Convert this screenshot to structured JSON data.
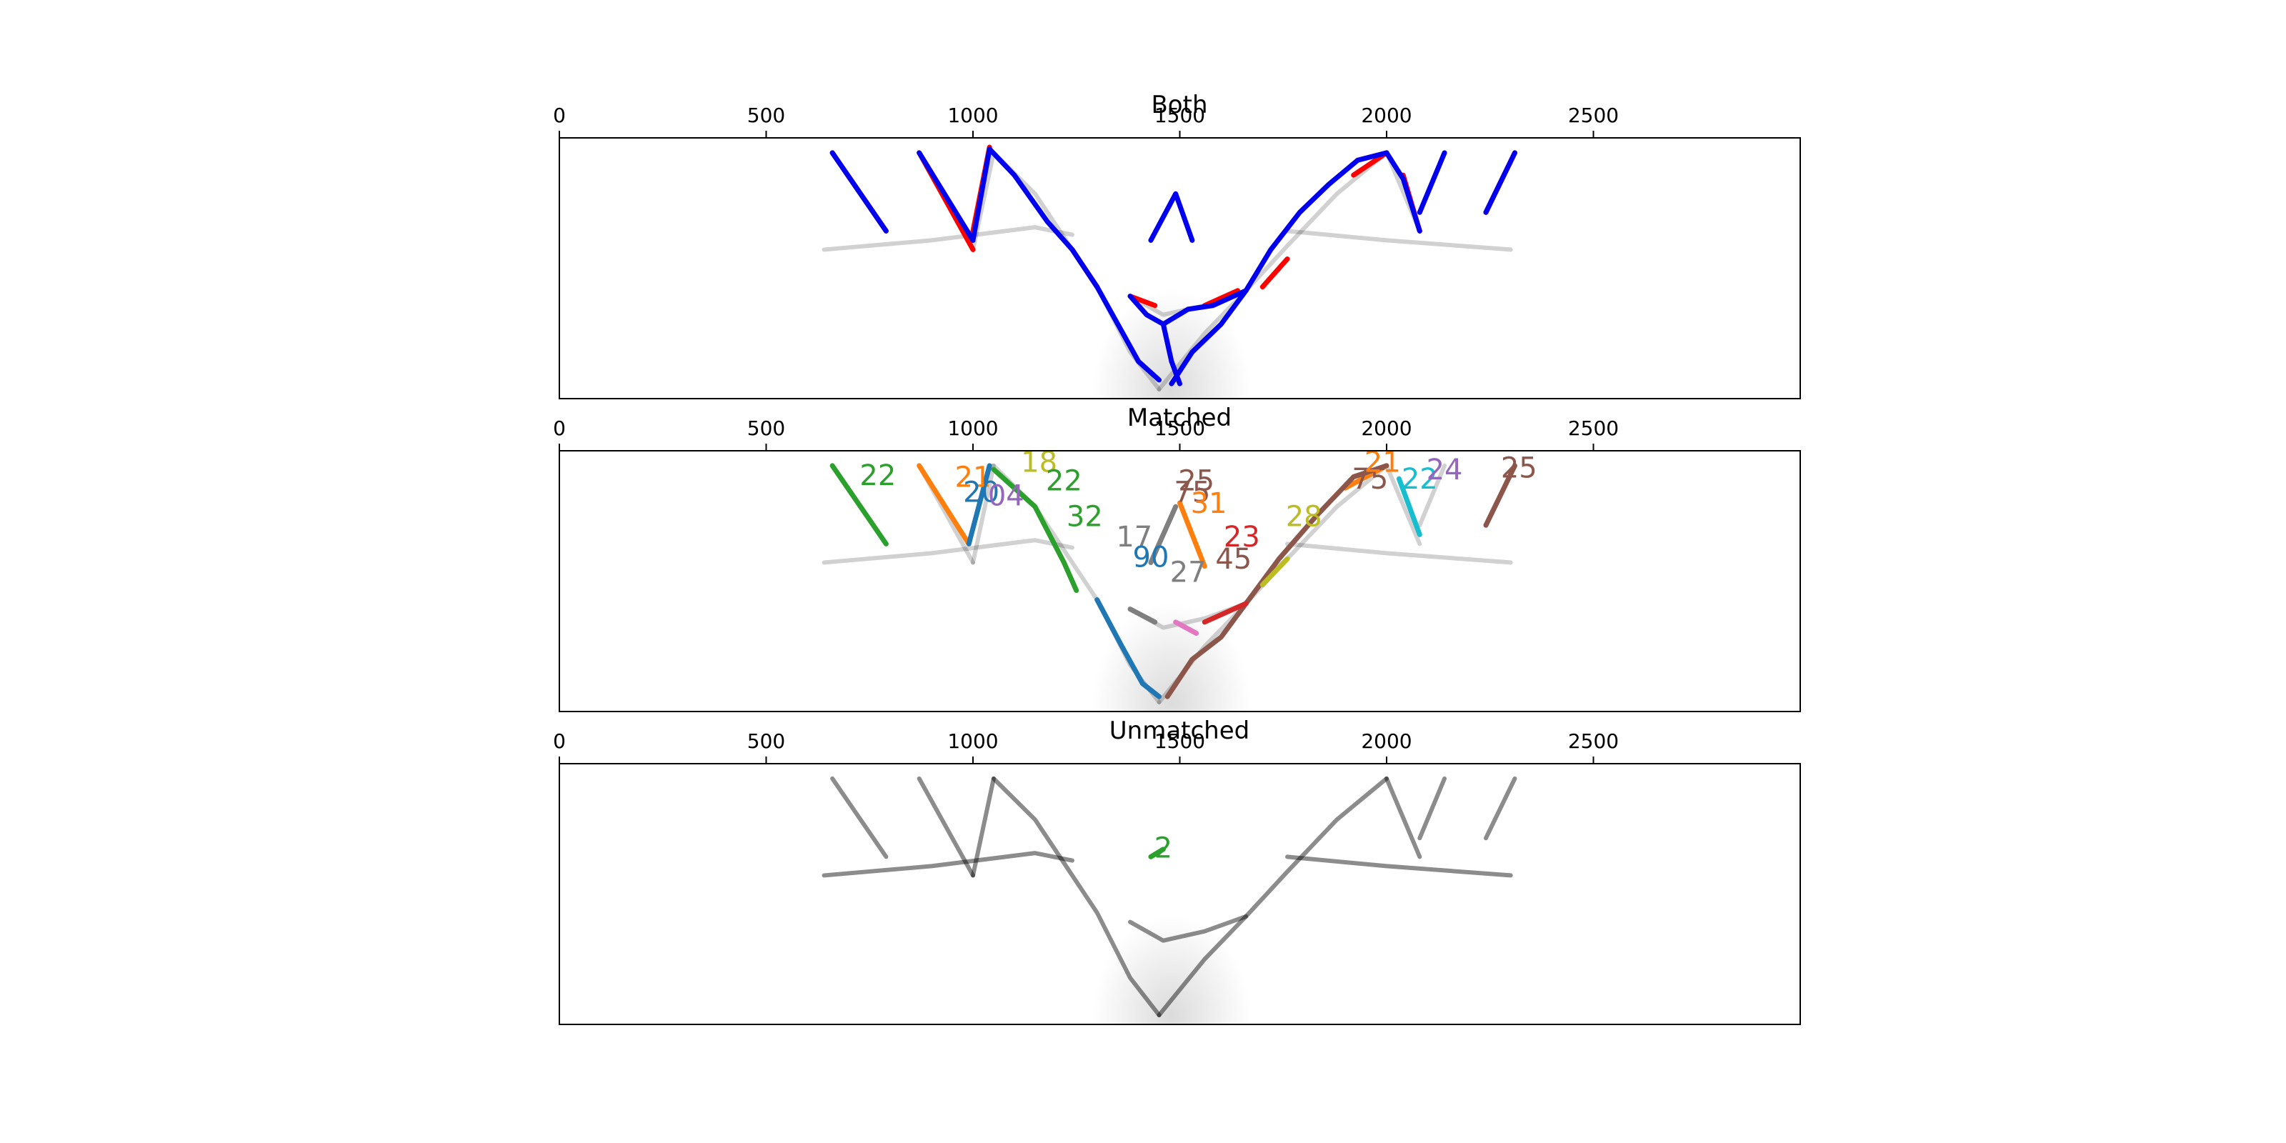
{
  "chart_data": [
    {
      "type": "line",
      "title": "Both",
      "xlim": [
        0,
        3000
      ],
      "xticks": [
        "0",
        "500",
        "1000",
        "1500",
        "2000",
        "2500"
      ],
      "grid": false,
      "series": [
        {
          "color": "#ff0000",
          "segments": [
            [
              [
                660,
                8
              ],
              [
                790,
                50
              ]
            ],
            [
              [
                870,
                8
              ],
              [
                1000,
                60
              ]
            ],
            [
              [
                1000,
                50
              ],
              [
                1040,
                5
              ]
            ],
            [
              [
                1240,
                60
              ],
              [
                1300,
                80
              ]
            ],
            [
              [
                1380,
                85
              ],
              [
                1440,
                90
              ]
            ],
            [
              [
                1560,
                90
              ],
              [
                1640,
                82
              ]
            ],
            [
              [
                1700,
                80
              ],
              [
                1760,
                65
              ]
            ],
            [
              [
                1920,
                20
              ],
              [
                2000,
                8
              ]
            ],
            [
              [
                2040,
                20
              ],
              [
                2080,
                50
              ]
            ],
            [
              [
                2240,
                40
              ],
              [
                2310,
                8
              ]
            ]
          ]
        },
        {
          "color": "#0000ee",
          "segments": [
            [
              [
                660,
                8
              ],
              [
                790,
                50
              ]
            ],
            [
              [
                870,
                8
              ],
              [
                1000,
                55
              ]
            ],
            [
              [
                1000,
                55
              ],
              [
                1040,
                6
              ]
            ],
            [
              [
                1040,
                6
              ],
              [
                1100,
                20
              ],
              [
                1180,
                45
              ],
              [
                1240,
                60
              ],
              [
                1300,
                80
              ]
            ],
            [
              [
                1300,
                80
              ],
              [
                1350,
                100
              ],
              [
                1400,
                120
              ],
              [
                1450,
                130
              ]
            ],
            [
              [
                1380,
                85
              ],
              [
                1420,
                95
              ],
              [
                1460,
                100
              ],
              [
                1520,
                92
              ],
              [
                1580,
                90
              ],
              [
                1660,
                82
              ]
            ],
            [
              [
                1460,
                100
              ],
              [
                1480,
                120
              ],
              [
                1500,
                132
              ]
            ],
            [
              [
                1480,
                132
              ],
              [
                1530,
                115
              ],
              [
                1600,
                100
              ],
              [
                1660,
                82
              ]
            ],
            [
              [
                1430,
                55
              ],
              [
                1490,
                30
              ],
              [
                1530,
                55
              ]
            ],
            [
              [
                1660,
                82
              ],
              [
                1720,
                60
              ],
              [
                1790,
                40
              ],
              [
                1860,
                25
              ],
              [
                1930,
                12
              ],
              [
                2000,
                8
              ]
            ],
            [
              [
                2000,
                8
              ],
              [
                2040,
                22
              ],
              [
                2080,
                50
              ]
            ],
            [
              [
                2080,
                40
              ],
              [
                2140,
                8
              ]
            ],
            [
              [
                2240,
                40
              ],
              [
                2310,
                8
              ]
            ]
          ]
        }
      ]
    },
    {
      "type": "line",
      "title": "Matched",
      "xlim": [
        0,
        3000
      ],
      "xticks": [
        "0",
        "500",
        "1000",
        "1500",
        "2000",
        "2500"
      ],
      "grid": false,
      "series": [
        {
          "color": "#2ca02c",
          "segments": [
            [
              [
                660,
                8
              ],
              [
                790,
                50
              ]
            ],
            [
              [
                1050,
                10
              ],
              [
                1150,
                30
              ],
              [
                1220,
                60
              ],
              [
                1250,
                75
              ]
            ]
          ]
        },
        {
          "color": "#ff7f0e",
          "segments": [
            [
              [
                870,
                8
              ],
              [
                990,
                50
              ]
            ],
            [
              [
                1500,
                28
              ],
              [
                1560,
                62
              ]
            ],
            [
              [
                1900,
                20
              ],
              [
                2000,
                8
              ]
            ]
          ]
        },
        {
          "color": "#1f77b4",
          "segments": [
            [
              [
                990,
                50
              ],
              [
                1040,
                8
              ]
            ],
            [
              [
                1300,
                80
              ],
              [
                1360,
                105
              ],
              [
                1410,
                125
              ],
              [
                1450,
                132
              ]
            ]
          ]
        },
        {
          "color": "#8c564b",
          "segments": [
            [
              [
                1470,
                132
              ],
              [
                1530,
                112
              ],
              [
                1600,
                100
              ],
              [
                1660,
                82
              ],
              [
                1740,
                58
              ],
              [
                1830,
                35
              ],
              [
                1920,
                14
              ],
              [
                2000,
                8
              ]
            ],
            [
              [
                2240,
                40
              ],
              [
                2310,
                8
              ]
            ]
          ]
        },
        {
          "color": "#7f7f7f",
          "segments": [
            [
              [
                1430,
                60
              ],
              [
                1490,
                30
              ]
            ],
            [
              [
                1380,
                85
              ],
              [
                1440,
                92
              ]
            ]
          ]
        },
        {
          "color": "#d62728",
          "segments": [
            [
              [
                1560,
                92
              ],
              [
                1660,
                82
              ]
            ]
          ]
        },
        {
          "color": "#e377c2",
          "segments": [
            [
              [
                1490,
                92
              ],
              [
                1540,
                98
              ]
            ]
          ]
        },
        {
          "color": "#17becf",
          "segments": [
            [
              [
                2030,
                15
              ],
              [
                2080,
                45
              ]
            ]
          ]
        },
        {
          "color": "#bcbd22",
          "segments": [
            [
              [
                1700,
                72
              ],
              [
                1760,
                58
              ]
            ]
          ]
        }
      ],
      "labels": [
        {
          "text": "22",
          "x": 770,
          "y": 13,
          "color": "#2ca02c"
        },
        {
          "text": "21",
          "x": 1000,
          "y": 14,
          "color": "#ff7f0e"
        },
        {
          "text": "20",
          "x": 1020,
          "y": 22,
          "color": "#1f77b4"
        },
        {
          "text": "04",
          "x": 1080,
          "y": 24,
          "color": "#9467bd"
        },
        {
          "text": "18",
          "x": 1160,
          "y": 6,
          "color": "#bcbd22"
        },
        {
          "text": "22",
          "x": 1220,
          "y": 16,
          "color": "#2ca02c"
        },
        {
          "text": "32",
          "x": 1270,
          "y": 35,
          "color": "#2ca02c"
        },
        {
          "text": "25",
          "x": 1540,
          "y": 16,
          "color": "#8c564b"
        },
        {
          "text": "75",
          "x": 1530,
          "y": 22,
          "color": "#8c564b"
        },
        {
          "text": "31",
          "x": 1570,
          "y": 28,
          "color": "#ff7f0e"
        },
        {
          "text": "17",
          "x": 1390,
          "y": 46,
          "color": "#7f7f7f"
        },
        {
          "text": "23",
          "x": 1650,
          "y": 46,
          "color": "#d62728"
        },
        {
          "text": "90",
          "x": 1430,
          "y": 57,
          "color": "#1f77b4"
        },
        {
          "text": "45",
          "x": 1630,
          "y": 58,
          "color": "#8c564b"
        },
        {
          "text": "27",
          "x": 1520,
          "y": 65,
          "color": "#7f7f7f"
        },
        {
          "text": "28",
          "x": 1800,
          "y": 35,
          "color": "#bcbd22"
        },
        {
          "text": "75",
          "x": 1960,
          "y": 15,
          "color": "#8c564b"
        },
        {
          "text": "21",
          "x": 1990,
          "y": 6,
          "color": "#ff7f0e"
        },
        {
          "text": "22",
          "x": 2080,
          "y": 15,
          "color": "#17becf"
        },
        {
          "text": "24",
          "x": 2140,
          "y": 10,
          "color": "#9467bd"
        },
        {
          "text": "25",
          "x": 2320,
          "y": 9,
          "color": "#8c564b"
        }
      ]
    },
    {
      "type": "line",
      "title": "Unmatched",
      "xlim": [
        0,
        3000
      ],
      "xticks": [
        "0",
        "500",
        "1000",
        "1500",
        "2000",
        "2500"
      ],
      "grid": false,
      "series": [
        {
          "color": "#2ca02c",
          "segments": [
            [
              [
                1430,
                50
              ],
              [
                1460,
                46
              ]
            ]
          ]
        }
      ],
      "labels": [
        {
          "text": "2",
          "x": 1460,
          "y": 45,
          "color": "#2ca02c"
        }
      ]
    }
  ]
}
